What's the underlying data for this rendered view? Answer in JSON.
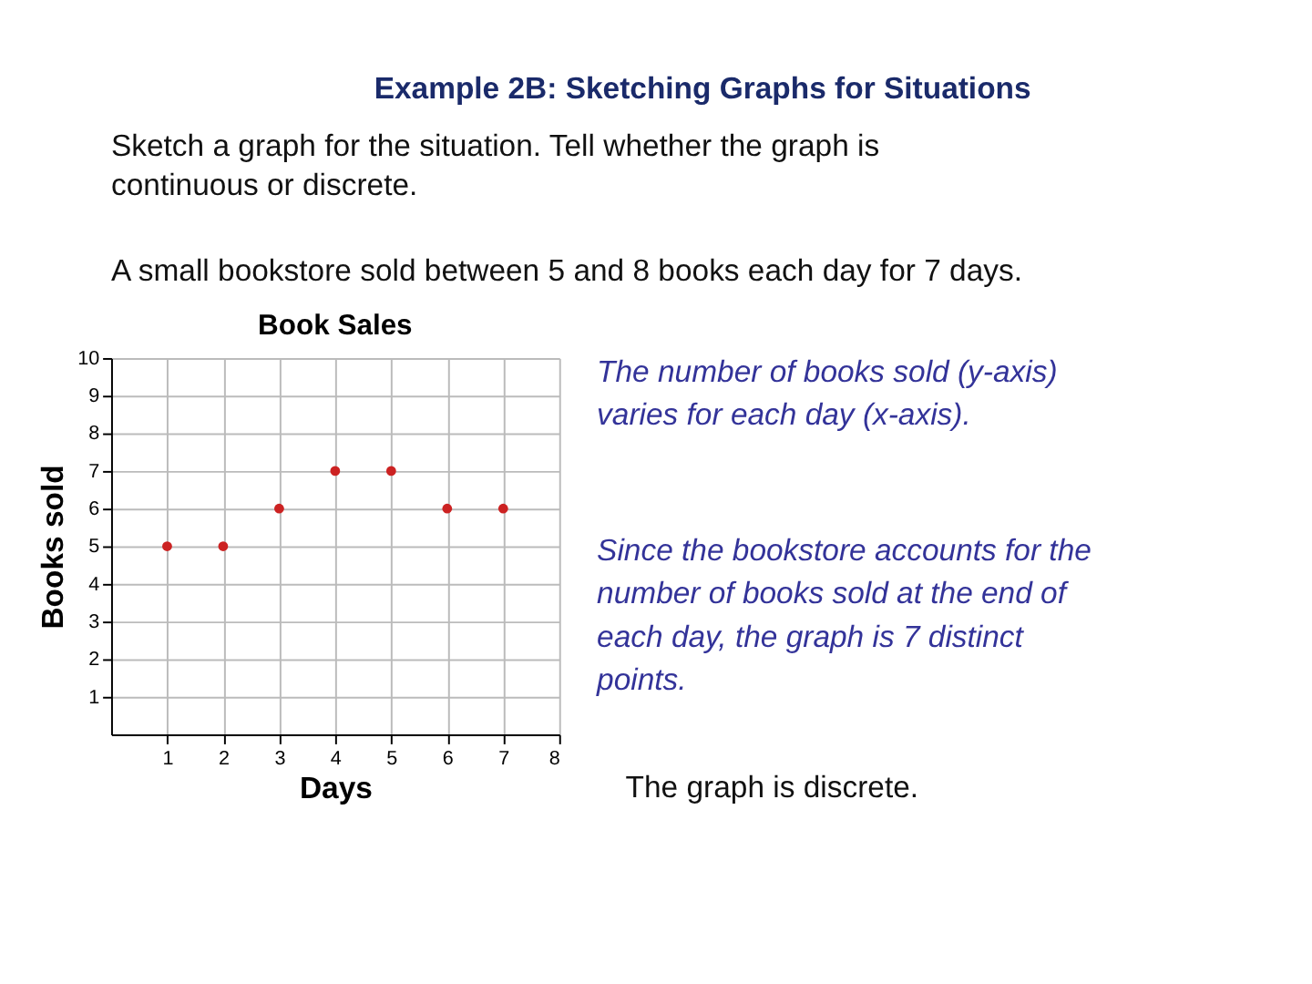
{
  "chart_data": {
    "type": "scatter",
    "title": "Book Sales",
    "xlabel": "Days",
    "ylabel": "Books sold",
    "x": [
      1,
      2,
      3,
      4,
      5,
      6,
      7
    ],
    "series": [
      {
        "color": "#cc2222",
        "values": [
          5,
          5,
          6,
          7,
          7,
          6,
          6
        ]
      }
    ],
    "xlim": [
      0,
      8
    ],
    "xticks": [
      1,
      2,
      3,
      4,
      5,
      6,
      7,
      8
    ],
    "ylim": [
      0,
      10
    ],
    "yticks": [
      1,
      2,
      3,
      4,
      5,
      6,
      7,
      8,
      9,
      10
    ],
    "grid": true,
    "marker": "circle",
    "annotations": [
      "Example 2B: Sketching Graphs for Situations",
      "Sketch a graph for the situation. Tell whether the graph is continuous or discrete.",
      "A small bookstore sold between 5 and 8 books each day for 7 days.",
      "The number of books sold (y-axis) varies for each day (x-axis).",
      "Since the bookstore accounts for the number of books sold at the end of each day, the graph is 7 distinct points.",
      "The graph is discrete."
    ]
  }
}
